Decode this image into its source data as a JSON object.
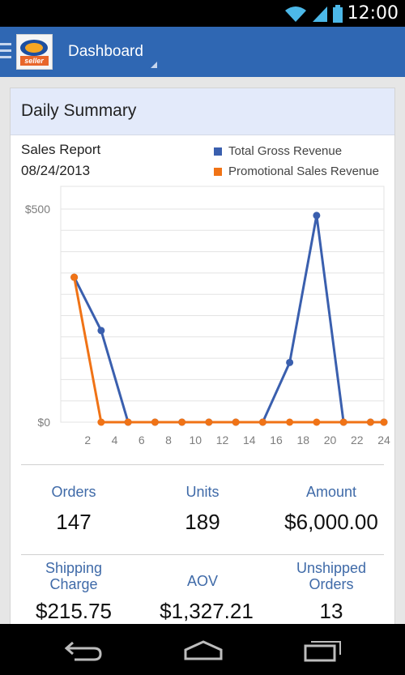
{
  "status_bar": {
    "time": "12:00"
  },
  "action_bar": {
    "title": "Dashboard",
    "logo_text": "seller"
  },
  "card": {
    "title": "Daily Summary",
    "report_title": "Sales Report",
    "report_date": "08/24/2013"
  },
  "colors": {
    "gross": "#3a5fae",
    "promo": "#f07316"
  },
  "chart_data": {
    "type": "line",
    "title": "Sales Report",
    "x": [
      1,
      3,
      5,
      7,
      9,
      11,
      13,
      15,
      17,
      19,
      21,
      23,
      24
    ],
    "x_ticks": [
      "2",
      "4",
      "6",
      "8",
      "10",
      "12",
      "14",
      "16",
      "18",
      "20",
      "22",
      "24"
    ],
    "x_tick_values": [
      2,
      4,
      6,
      8,
      10,
      12,
      14,
      16,
      18,
      20,
      22,
      24
    ],
    "y_ticks": [
      "$0",
      "$500"
    ],
    "y_tick_values": [
      0,
      500
    ],
    "ylim": [
      0,
      500
    ],
    "xlim": [
      0,
      24
    ],
    "grid": true,
    "legend_position": "top-right",
    "series": [
      {
        "name": "Total Gross Revenue",
        "values": [
          340,
          215,
          0,
          0,
          0,
          0,
          0,
          0,
          140,
          485,
          0,
          0,
          0
        ]
      },
      {
        "name": "Promotional Sales Revenue",
        "values": [
          340,
          0,
          0,
          0,
          0,
          0,
          0,
          0,
          0,
          0,
          0,
          0,
          0
        ]
      }
    ]
  },
  "stats": {
    "orders_label": "Orders",
    "orders_value": "147",
    "units_label": "Units",
    "units_value": "189",
    "amount_label": "Amount",
    "amount_value": "$6,000.00",
    "shipping_label_1": "Shipping",
    "shipping_label_2": "Charge",
    "shipping_value": "$215.75",
    "aov_label": "AOV",
    "aov_value": "$1,327.21",
    "unshipped_label_1": "Unshipped",
    "unshipped_label_2": "Orders",
    "unshipped_value": "13"
  }
}
